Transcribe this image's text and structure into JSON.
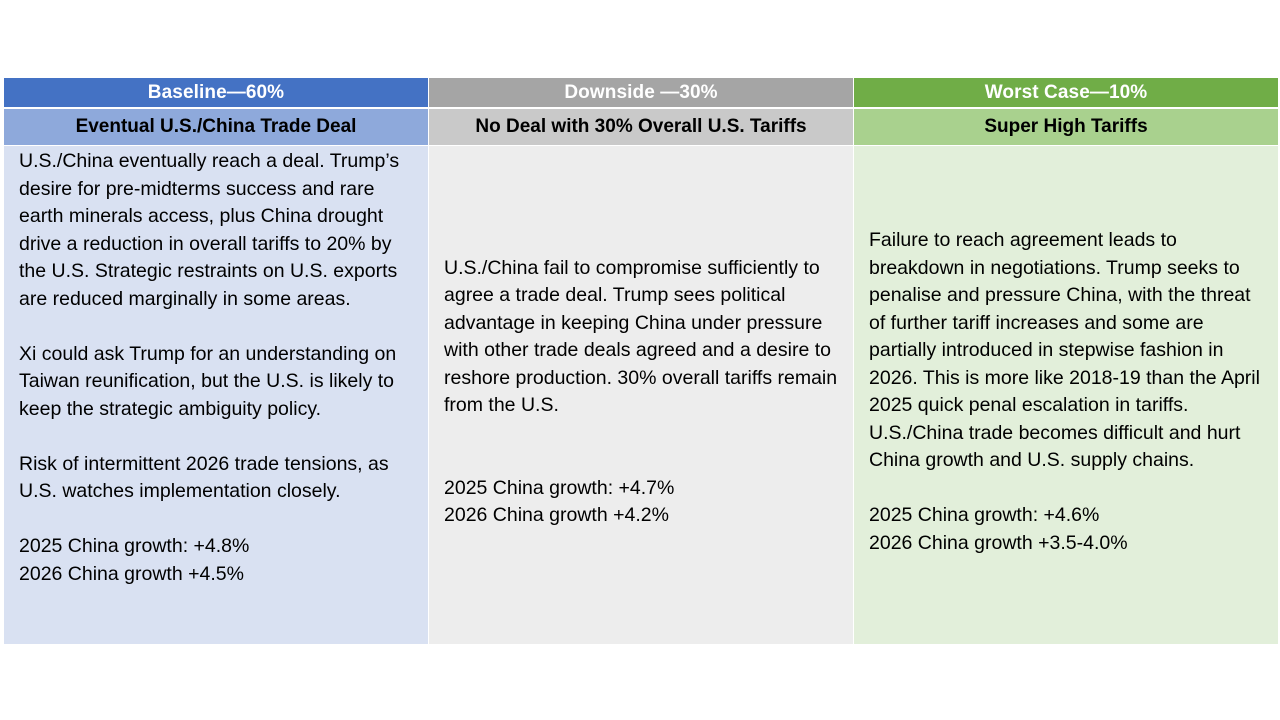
{
  "columns": [
    {
      "header": "Baseline—60%",
      "subheader": "Eventual U.S./China Trade Deal",
      "paragraphs": [
        "U.S./China eventually reach a deal. Trump’s desire for pre-midterms success and rare earth minerals access, plus China drought drive a reduction in overall tariffs to 20% by the U.S.  Strategic restraints on U.S. exports are reduced marginally in some areas.",
        "Xi could ask Trump for an understanding on Taiwan reunification, but the U.S. is likely to keep the strategic ambiguity policy.",
        "Risk of intermittent 2026 trade tensions, as U.S. watches implementation closely."
      ],
      "growth_2025": "2025 China growth: +4.8%",
      "growth_2026": "2026 China growth +4.5%"
    },
    {
      "header": "Downside —30%",
      "subheader": "No Deal with 30% Overall U.S. Tariffs",
      "paragraphs": [
        "U.S./China fail to compromise sufficiently to agree a trade deal.  Trump sees political advantage in keeping China under pressure with other trade deals agreed and a desire to reshore production.  30% overall tariffs remain from the U.S."
      ],
      "growth_2025": "2025 China growth: +4.7%",
      "growth_2026": "2026 China growth +4.2%"
    },
    {
      "header": "Worst Case—10%",
      "subheader": "Super High Tariffs",
      "paragraphs": [
        "Failure to reach agreement leads to breakdown in negotiations.  Trump seeks to penalise and pressure China, with the threat of further tariff increases and some are partially introduced in stepwise fashion in 2026.  This is more like 2018-19 than the April 2025 quick penal escalation in tariffs.  U.S./China trade becomes difficult and hurt China growth and U.S. supply chains."
      ],
      "growth_2025": "2025 China growth: +4.6%",
      "growth_2026": "2026 China growth +3.5-4.0%"
    }
  ],
  "colors": {
    "baseline_header": "#4472C4",
    "baseline_sub": "#8EA9DB",
    "baseline_body": "#D9E1F2",
    "downside_header": "#A5A5A5",
    "downside_sub": "#C9C9C9",
    "downside_body": "#EDEDED",
    "worst_header": "#70AD47",
    "worst_sub": "#A9D18E",
    "worst_body": "#E2EFDA"
  }
}
